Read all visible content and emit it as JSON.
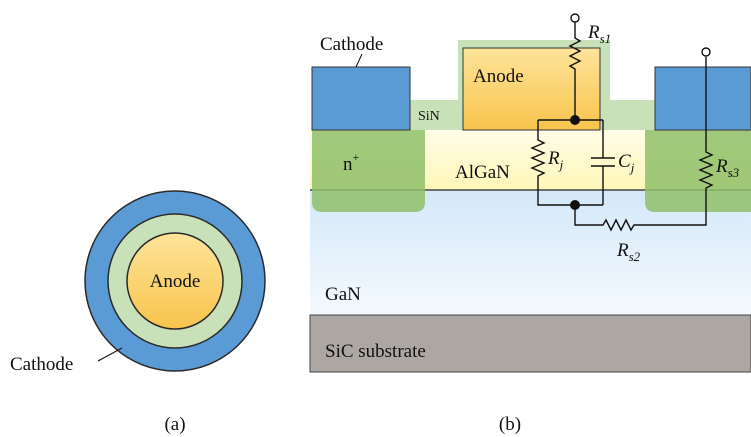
{
  "panel_a": {
    "anode": "Anode",
    "cathode": "Cathode",
    "caption": "(a)"
  },
  "panel_b": {
    "cathode": "Cathode",
    "anode": "Anode",
    "sin": "SiN",
    "n_plus": {
      "text": "n",
      "superscript": "+"
    },
    "algan": "AlGaN",
    "gan": "GaN",
    "substrate": "SiC substrate",
    "caption": "(b)",
    "r_s1": {
      "symbol": "R",
      "subscript": "s1"
    },
    "r_j": {
      "symbol": "R",
      "subscript": "j"
    },
    "c_j": {
      "symbol": "C",
      "subscript": "j"
    },
    "r_s2": {
      "symbol": "R",
      "subscript": "s2"
    },
    "r_s3": {
      "symbol": "R",
      "subscript": "s3"
    }
  }
}
